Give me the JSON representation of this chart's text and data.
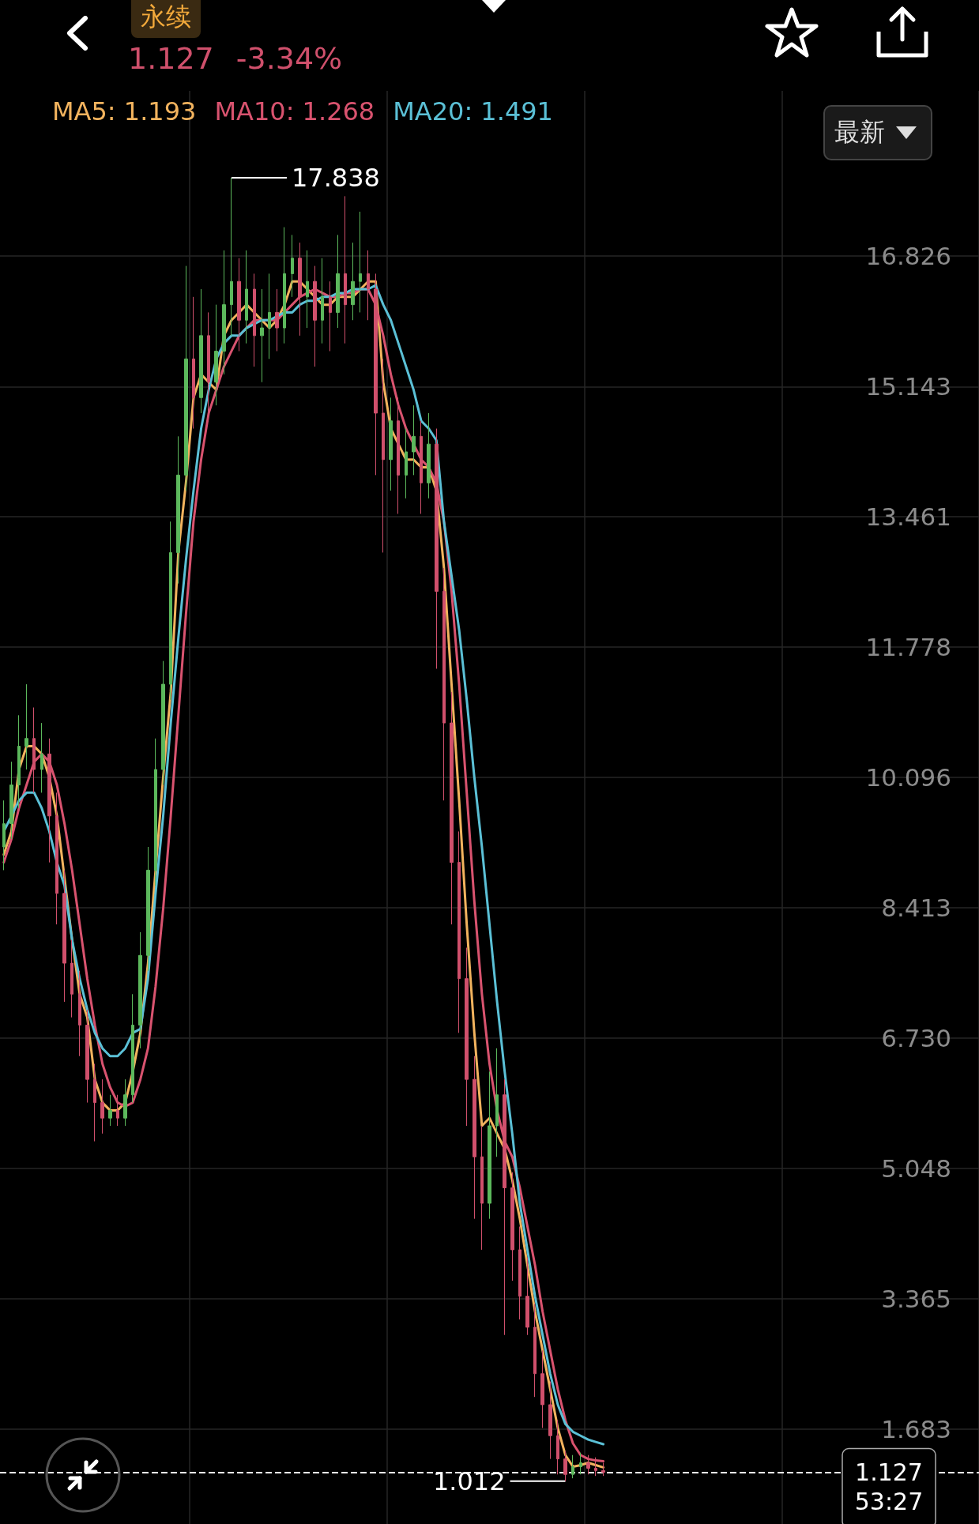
{
  "chart_data": {
    "type": "candlestick",
    "categories": [
      null,
      null,
      null,
      null,
      null,
      null,
      null,
      null,
      null,
      null,
      null,
      null,
      null,
      null,
      null,
      null,
      null,
      null,
      null,
      null,
      null,
      null,
      null,
      null,
      null,
      null,
      null,
      null,
      null,
      null,
      null,
      null,
      null,
      null,
      null,
      null,
      null,
      null,
      null,
      null,
      null,
      null,
      null,
      null,
      null,
      null,
      null,
      null,
      null,
      null,
      null,
      null,
      null,
      null,
      null,
      null,
      null,
      null,
      null,
      null,
      null,
      null,
      null,
      null,
      null,
      null,
      null,
      null,
      null,
      null,
      null,
      null,
      null,
      null,
      null,
      null,
      null,
      null,
      null,
      null
    ],
    "ohlc": [
      [
        9.2,
        9.8,
        8.9,
        9.5
      ],
      [
        9.5,
        10.3,
        9.3,
        10.0
      ],
      [
        10.0,
        10.9,
        9.7,
        10.5
      ],
      [
        10.5,
        11.3,
        10.2,
        10.6
      ],
      [
        10.6,
        11.0,
        9.9,
        10.2
      ],
      [
        10.2,
        10.8,
        9.9,
        10.4
      ],
      [
        10.4,
        10.6,
        9.0,
        9.6
      ],
      [
        9.6,
        9.9,
        8.2,
        8.6
      ],
      [
        8.6,
        8.9,
        7.2,
        7.7
      ],
      [
        7.7,
        8.0,
        7.0,
        7.3
      ],
      [
        7.3,
        7.6,
        6.5,
        6.9
      ],
      [
        6.9,
        7.1,
        5.9,
        6.2
      ],
      [
        6.2,
        6.4,
        5.4,
        5.9
      ],
      [
        5.9,
        6.2,
        5.5,
        5.7
      ],
      [
        5.7,
        6.0,
        5.6,
        5.8
      ],
      [
        5.8,
        6.0,
        5.6,
        5.7
      ],
      [
        5.7,
        6.2,
        5.6,
        6.0
      ],
      [
        6.0,
        7.3,
        5.9,
        6.9
      ],
      [
        6.9,
        8.1,
        6.6,
        7.8
      ],
      [
        7.8,
        9.2,
        7.6,
        8.9
      ],
      [
        8.9,
        10.6,
        8.7,
        10.2
      ],
      [
        10.2,
        11.6,
        10.0,
        11.3
      ],
      [
        11.3,
        13.4,
        11.1,
        13.0
      ],
      [
        13.0,
        14.5,
        12.6,
        14.0
      ],
      [
        14.0,
        16.7,
        13.8,
        15.5
      ],
      [
        15.5,
        16.3,
        14.6,
        15.0
      ],
      [
        15.0,
        16.4,
        14.8,
        15.8
      ],
      [
        15.8,
        16.1,
        14.7,
        15.2
      ],
      [
        15.2,
        16.2,
        14.9,
        15.6
      ],
      [
        15.6,
        16.9,
        15.3,
        16.2
      ],
      [
        16.2,
        17.838,
        15.8,
        16.5
      ],
      [
        16.5,
        16.8,
        15.6,
        16.0
      ],
      [
        16.0,
        16.9,
        15.7,
        16.4
      ],
      [
        16.4,
        16.6,
        15.4,
        15.8
      ],
      [
        15.8,
        16.4,
        15.2,
        15.9
      ],
      [
        15.9,
        16.6,
        15.5,
        16.1
      ],
      [
        16.1,
        16.4,
        15.6,
        15.9
      ],
      [
        15.9,
        17.2,
        15.7,
        16.6
      ],
      [
        16.6,
        17.1,
        16.3,
        16.8
      ],
      [
        16.8,
        17.0,
        15.8,
        16.3
      ],
      [
        16.3,
        16.9,
        15.9,
        16.5
      ],
      [
        16.5,
        16.7,
        15.4,
        16.0
      ],
      [
        16.0,
        16.8,
        15.7,
        16.3
      ],
      [
        16.3,
        16.5,
        15.6,
        16.1
      ],
      [
        16.1,
        17.1,
        15.9,
        16.6
      ],
      [
        16.6,
        17.6,
        15.7,
        16.2
      ],
      [
        16.2,
        17.0,
        16.0,
        16.5
      ],
      [
        16.5,
        17.4,
        16.1,
        16.6
      ],
      [
        16.6,
        16.9,
        16.0,
        16.4
      ],
      [
        16.4,
        16.6,
        14.0,
        14.8
      ],
      [
        14.8,
        15.5,
        13.0,
        14.2
      ],
      [
        14.2,
        15.0,
        13.8,
        14.7
      ],
      [
        14.7,
        15.0,
        13.5,
        14.0
      ],
      [
        14.0,
        14.6,
        13.7,
        14.3
      ],
      [
        14.3,
        14.9,
        14.0,
        14.5
      ],
      [
        14.5,
        14.7,
        13.5,
        13.9
      ],
      [
        13.9,
        14.8,
        13.7,
        14.4
      ],
      [
        14.4,
        14.6,
        11.5,
        12.5
      ],
      [
        12.5,
        12.8,
        9.8,
        10.8
      ],
      [
        10.8,
        11.2,
        8.2,
        9.0
      ],
      [
        9.0,
        9.4,
        6.8,
        7.5
      ],
      [
        7.5,
        7.9,
        5.6,
        6.2
      ],
      [
        6.2,
        6.5,
        4.4,
        5.2
      ],
      [
        5.2,
        5.6,
        4.0,
        4.6
      ],
      [
        4.6,
        6.3,
        4.4,
        5.6
      ],
      [
        5.6,
        6.6,
        5.2,
        6.0
      ],
      [
        6.0,
        6.2,
        2.9,
        4.8
      ],
      [
        4.8,
        5.0,
        3.6,
        4.0
      ],
      [
        4.0,
        4.3,
        3.1,
        3.4
      ],
      [
        3.4,
        3.9,
        2.9,
        3.0
      ],
      [
        3.0,
        3.3,
        2.1,
        2.4
      ],
      [
        2.4,
        2.7,
        1.7,
        2.0
      ],
      [
        2.0,
        2.3,
        1.3,
        1.6
      ],
      [
        1.6,
        1.8,
        1.1,
        1.3
      ],
      [
        1.3,
        1.4,
        1.012,
        1.1
      ],
      [
        1.1,
        1.35,
        1.05,
        1.2
      ],
      [
        1.2,
        1.38,
        1.1,
        1.25
      ],
      [
        1.25,
        1.35,
        1.1,
        1.18
      ],
      [
        1.18,
        1.32,
        1.08,
        1.15
      ],
      [
        1.15,
        1.25,
        1.08,
        1.127
      ]
    ],
    "colors": [
      "#5cb85c",
      "#5cb85c",
      "#5cb85c",
      "#5cb85c",
      "#d0506c",
      "#5cb85c",
      "#d0506c",
      "#d0506c",
      "#d0506c",
      "#d0506c",
      "#d0506c",
      "#d0506c",
      "#d0506c",
      "#d0506c",
      "#5cb85c",
      "#d0506c",
      "#5cb85c",
      "#5cb85c",
      "#5cb85c",
      "#5cb85c",
      "#5cb85c",
      "#5cb85c",
      "#5cb85c",
      "#5cb85c",
      "#5cb85c",
      "#d0506c",
      "#5cb85c",
      "#d0506c",
      "#5cb85c",
      "#5cb85c",
      "#5cb85c",
      "#d0506c",
      "#5cb85c",
      "#d0506c",
      "#5cb85c",
      "#5cb85c",
      "#d0506c",
      "#5cb85c",
      "#5cb85c",
      "#d0506c",
      "#5cb85c",
      "#d0506c",
      "#5cb85c",
      "#d0506c",
      "#5cb85c",
      "#d0506c",
      "#5cb85c",
      "#5cb85c",
      "#d0506c",
      "#d0506c",
      "#d0506c",
      "#5cb85c",
      "#d0506c",
      "#5cb85c",
      "#5cb85c",
      "#d0506c",
      "#5cb85c",
      "#d0506c",
      "#d0506c",
      "#d0506c",
      "#d0506c",
      "#d0506c",
      "#d0506c",
      "#d0506c",
      "#5cb85c",
      "#5cb85c",
      "#d0506c",
      "#d0506c",
      "#d0506c",
      "#d0506c",
      "#d0506c",
      "#d0506c",
      "#d0506c",
      "#d0506c",
      "#d0506c",
      "#5cb85c",
      "#5cb85c",
      "#d0506c",
      "#d0506c",
      "#d0506c"
    ],
    "series": [
      {
        "type": "line",
        "name": "MA5: 1.193",
        "color": "#f2b35e",
        "values": [
          9.1,
          9.4,
          10.2,
          10.5,
          10.5,
          10.4,
          10.1,
          9.6,
          8.8,
          8.0,
          7.3,
          7.0,
          6.2,
          5.9,
          5.8,
          5.8,
          5.9,
          6.3,
          6.8,
          7.7,
          8.9,
          10.1,
          11.2,
          13.0,
          13.9,
          15.0,
          15.3,
          15.2,
          15.1,
          15.8,
          16.0,
          16.1,
          16.2,
          16.1,
          16.0,
          15.9,
          16.0,
          16.2,
          16.5,
          16.5,
          16.4,
          16.3,
          16.2,
          16.2,
          16.3,
          16.3,
          16.3,
          16.4,
          16.5,
          16.5,
          15.2,
          14.6,
          14.4,
          14.2,
          14.2,
          14.1,
          14.1,
          13.8,
          12.8,
          11.3,
          9.8,
          8.2,
          6.8,
          5.6,
          5.7,
          5.5,
          5.3,
          4.9,
          4.4,
          3.8,
          3.2,
          2.7,
          2.2,
          1.7,
          1.35,
          1.2,
          1.22,
          1.25,
          1.22,
          1.19
        ]
      },
      {
        "type": "line",
        "name": "MA10: 1.268",
        "color": "#d9536f",
        "values": [
          9.0,
          9.3,
          9.7,
          10.0,
          10.3,
          10.4,
          10.3,
          10.0,
          9.5,
          8.9,
          8.2,
          7.5,
          6.9,
          6.4,
          6.1,
          5.9,
          5.85,
          5.9,
          6.2,
          6.6,
          7.4,
          8.4,
          9.6,
          10.9,
          12.2,
          13.4,
          14.2,
          14.8,
          15.1,
          15.4,
          15.6,
          15.8,
          15.9,
          16.0,
          16.0,
          16.0,
          16.0,
          16.1,
          16.2,
          16.3,
          16.35,
          16.4,
          16.35,
          16.3,
          16.3,
          16.35,
          16.35,
          16.4,
          16.4,
          16.2,
          15.8,
          15.3,
          14.9,
          14.6,
          14.4,
          14.2,
          14.1,
          13.9,
          13.4,
          12.5,
          11.3,
          9.9,
          8.5,
          7.3,
          6.4,
          5.8,
          5.4,
          5.2,
          4.8,
          4.3,
          3.8,
          3.2,
          2.7,
          2.2,
          1.8,
          1.5,
          1.35,
          1.3,
          1.28,
          1.27
        ]
      },
      {
        "type": "line",
        "name": "MA20: 1.491",
        "color": "#5bc0d6",
        "values": [
          9.4,
          9.6,
          9.8,
          9.9,
          9.9,
          9.7,
          9.4,
          9.0,
          8.7,
          8.0,
          7.5,
          7.1,
          6.8,
          6.6,
          6.5,
          6.5,
          6.6,
          6.8,
          6.85,
          7.5,
          8.6,
          9.6,
          10.8,
          11.9,
          12.9,
          13.8,
          14.6,
          15.1,
          15.5,
          15.7,
          15.8,
          15.8,
          15.9,
          15.95,
          16.0,
          16.0,
          16.05,
          16.1,
          16.1,
          16.2,
          16.25,
          16.25,
          16.3,
          16.3,
          16.35,
          16.35,
          16.4,
          16.4,
          16.4,
          16.45,
          16.2,
          16.0,
          15.7,
          15.4,
          15.1,
          14.7,
          14.6,
          14.45,
          13.4,
          12.7,
          12.0,
          11.1,
          10.1,
          9.2,
          8.2,
          7.2,
          6.3,
          5.5,
          4.6,
          4.0,
          3.4,
          2.9,
          2.4,
          2.0,
          1.75,
          1.65,
          1.6,
          1.55,
          1.52,
          1.49
        ]
      }
    ],
    "ylim": [
      0.46,
      18.96
    ],
    "yticks": [
      1.683,
      3.365,
      5.048,
      {
        "value": 6.73,
        "label": "6.730"
      },
      8.413,
      10.096,
      11.778,
      13.461,
      15.143,
      16.826
    ],
    "ref_lines": [
      {
        "axis": "y",
        "value": 1.127,
        "label": "1.127",
        "line_style": "dashed",
        "color": "#ffffff"
      }
    ],
    "annotations": [
      "永续",
      "1.127",
      "-3.34%",
      "最新",
      "53:27",
      "17.838",
      "1.012"
    ],
    "grid": true,
    "legend": "top",
    "tick_labels": "y",
    "marker": "none"
  }
}
